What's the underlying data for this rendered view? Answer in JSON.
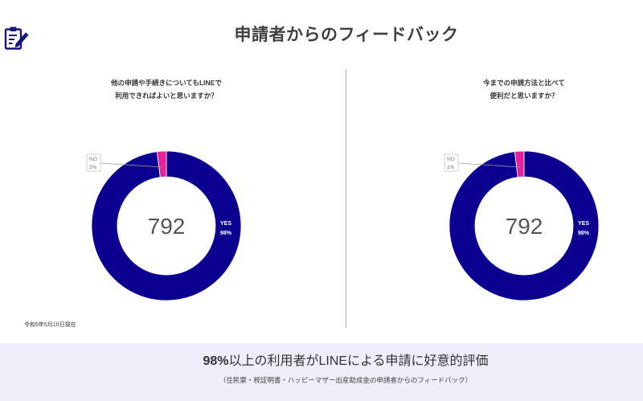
{
  "page": {
    "title": "申請者からのフィードバック",
    "as_of": "令和5年5月10日現在"
  },
  "header": {
    "icon": "clipboard-edit-icon"
  },
  "colors": {
    "icon": "#16167a",
    "title": "#404040",
    "yes": "#0b0090",
    "no": "#e6229a",
    "summary_band": "#eeedf9",
    "divider": "#a9a9a9"
  },
  "chart_data": [
    {
      "type": "pie",
      "donut": true,
      "title_lines": [
        "他の申請や手続きについてもLINEで",
        "利用できればよいと思いますか？"
      ],
      "center_label": "792",
      "categories": [
        "YES",
        "NO"
      ],
      "values": [
        98,
        2
      ],
      "value_labels": [
        "98%",
        "2%"
      ],
      "colors": [
        "#0b0090",
        "#e6229a"
      ]
    },
    {
      "type": "pie",
      "donut": true,
      "title_lines": [
        "今までの申請方法と比べて",
        "便利だと思いますか？"
      ],
      "center_label": "792",
      "categories": [
        "YES",
        "NO"
      ],
      "values": [
        98,
        2
      ],
      "value_labels": [
        "98%",
        "2%"
      ],
      "colors": [
        "#0b0090",
        "#e6229a"
      ]
    }
  ],
  "summary": {
    "headline_emphasis": "98%",
    "headline_rest": "以上の利用者がLINEによる申請に好意的評価",
    "note": "（住民票・税証明書・ハッピーマザー出産助成金の申請者からのフィードバック）"
  }
}
